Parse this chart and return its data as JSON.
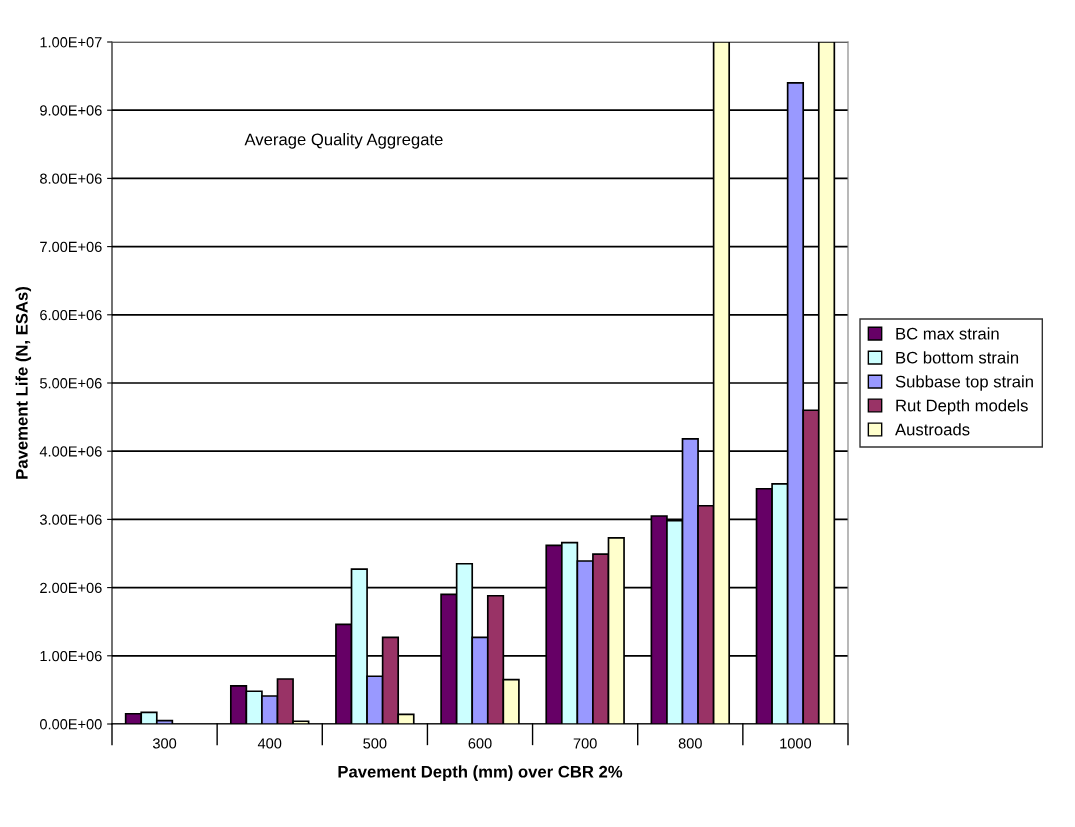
{
  "chart_data": {
    "type": "bar",
    "xlabel": "Pavement Depth (mm) over CBR 2%",
    "ylabel": "Pavement Life (N, ESAs)",
    "categories": [
      "300",
      "400",
      "500",
      "600",
      "700",
      "800",
      "1000"
    ],
    "series": [
      {
        "name": "BC max strain",
        "color": "#660066",
        "values": [
          150000,
          560000,
          1460000,
          1900000,
          2620000,
          3050000,
          3450000
        ]
      },
      {
        "name": "BC bottom strain",
        "color": "#ccffff",
        "values": [
          170000,
          480000,
          2270000,
          2350000,
          2660000,
          2980000,
          3520000
        ]
      },
      {
        "name": "Subbase top strain",
        "color": "#9999ff",
        "values": [
          50000,
          410000,
          700000,
          1270000,
          2390000,
          4180000,
          9400000
        ]
      },
      {
        "name": "Rut Depth models",
        "color": "#993366",
        "values": [
          null,
          660000,
          1270000,
          1880000,
          2490000,
          3200000,
          4600000
        ]
      },
      {
        "name": "Austroads",
        "color": "#ffffcc",
        "values": [
          null,
          40000,
          140000,
          650000,
          2730000,
          10000000,
          10000000
        ]
      }
    ],
    "ylim": [
      0,
      10000000
    ],
    "yticks": [
      {
        "value": 0,
        "label": "0.00E+00"
      },
      {
        "value": 1000000,
        "label": "1.00E+06"
      },
      {
        "value": 2000000,
        "label": "2.00E+06"
      },
      {
        "value": 3000000,
        "label": "3.00E+06"
      },
      {
        "value": 4000000,
        "label": "4.00E+06"
      },
      {
        "value": 5000000,
        "label": "5.00E+06"
      },
      {
        "value": 6000000,
        "label": "6.00E+06"
      },
      {
        "value": 7000000,
        "label": "7.00E+06"
      },
      {
        "value": 8000000,
        "label": "8.00E+06"
      },
      {
        "value": 9000000,
        "label": "9.00E+06"
      },
      {
        "value": 10000000,
        "label": "1.00E+07"
      }
    ],
    "annotations": [
      "Average Quality Aggregate"
    ],
    "grid": "y",
    "legend": "right"
  }
}
